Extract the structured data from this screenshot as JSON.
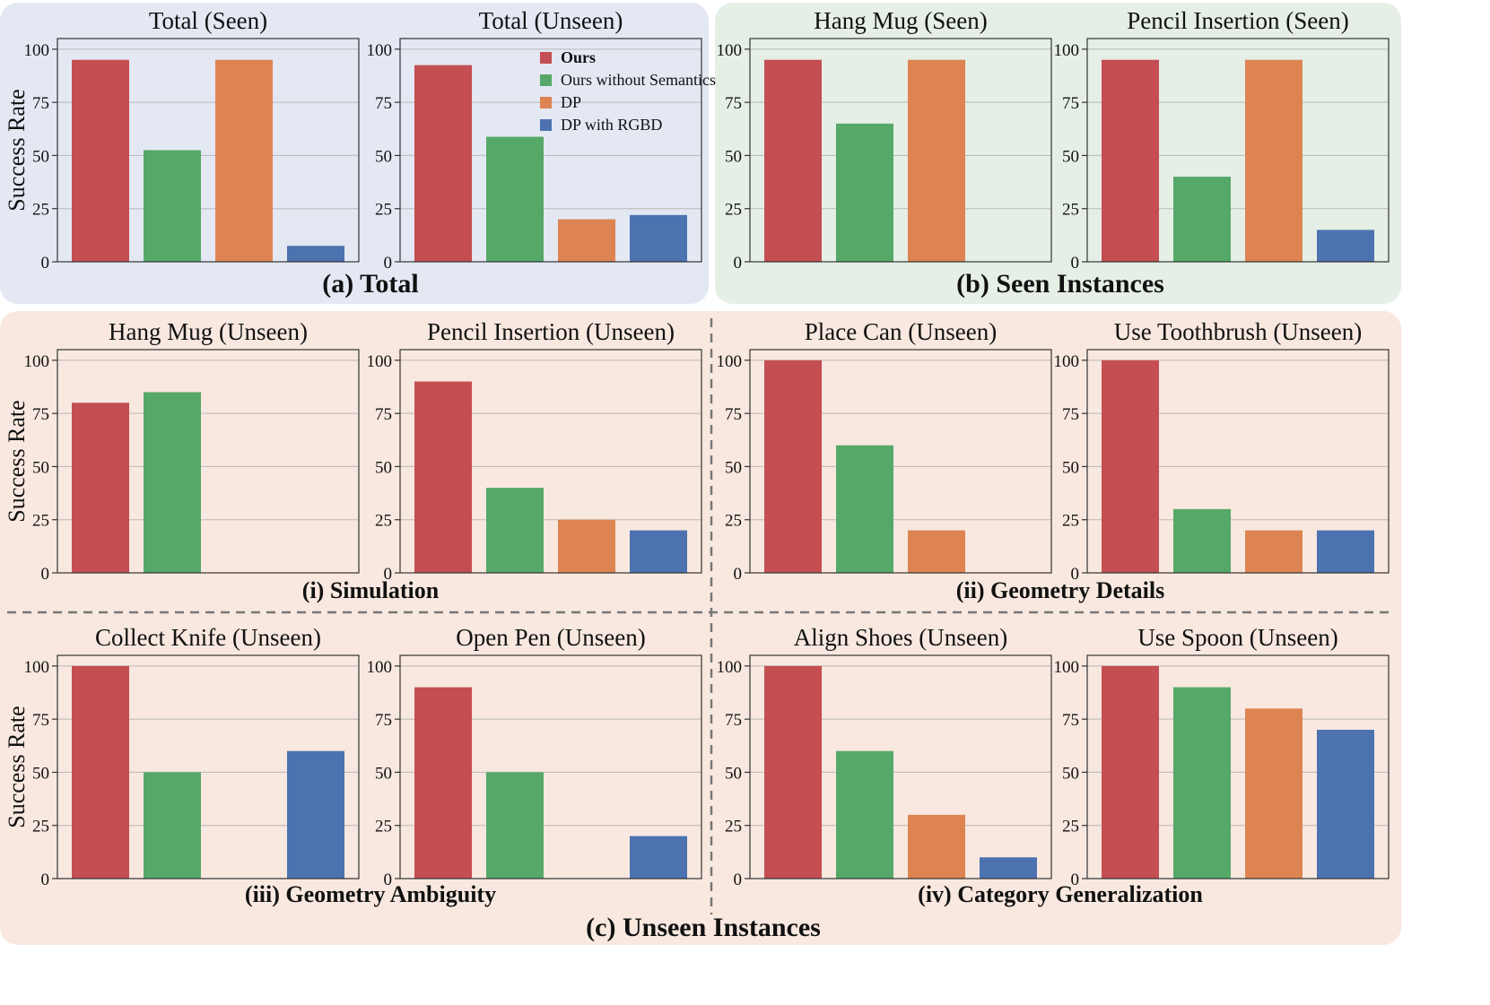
{
  "panels": [
    {
      "id": "a",
      "title": "(a) Total",
      "color": "#e3e8f3"
    },
    {
      "id": "b",
      "title": "(b) Seen Instances",
      "color": "#e5efe6"
    },
    {
      "id": "c",
      "title": "(c) Unseen Instances",
      "color": "#f8e8df"
    }
  ],
  "subsections": [
    "(i) Simulation",
    "(ii) Geometry Details",
    "(iii) Geometry Ambiguity",
    "(iv) Category Generalization"
  ],
  "legend": [
    {
      "label": "Ours",
      "color": "#c44e52"
    },
    {
      "label": "Ours without Semantics",
      "color": "#55a868"
    },
    {
      "label": "DP",
      "color": "#dd8452"
    },
    {
      "label": "DP with RGBD",
      "color": "#4c72b0"
    }
  ],
  "chart_data": [
    {
      "type": "bar",
      "title": "Total (Seen)",
      "ylabel": "Success Rate",
      "ylim": [
        0,
        105
      ],
      "yticks": [
        0,
        25,
        50,
        75,
        100
      ],
      "categories": [
        "Ours",
        "Ours without Semantics",
        "DP",
        "DP with RGBD"
      ],
      "values": [
        95,
        52.5,
        95,
        7.5
      ]
    },
    {
      "type": "bar",
      "title": "Total (Unseen)",
      "ylabel": "",
      "ylim": [
        0,
        105
      ],
      "yticks": [
        0,
        25,
        50,
        75,
        100
      ],
      "categories": [
        "Ours",
        "Ours without Semantics",
        "DP",
        "DP with RGBD"
      ],
      "values": [
        92.5,
        58.8,
        20,
        22
      ],
      "legend": "top-right"
    },
    {
      "type": "bar",
      "title": "Hang Mug (Seen)",
      "ylabel": "",
      "ylim": [
        0,
        105
      ],
      "yticks": [
        0,
        25,
        50,
        75,
        100
      ],
      "categories": [
        "Ours",
        "Ours without Semantics",
        "DP",
        "DP with RGBD"
      ],
      "values": [
        95,
        65,
        95,
        0
      ]
    },
    {
      "type": "bar",
      "title": "Pencil Insertion (Seen)",
      "ylabel": "",
      "ylim": [
        0,
        105
      ],
      "yticks": [
        0,
        25,
        50,
        75,
        100
      ],
      "categories": [
        "Ours",
        "Ours without Semantics",
        "DP",
        "DP with RGBD"
      ],
      "values": [
        95,
        40,
        95,
        15
      ]
    },
    {
      "type": "bar",
      "title": "Hang Mug (Unseen)",
      "ylabel": "Success Rate",
      "ylim": [
        0,
        105
      ],
      "yticks": [
        0,
        25,
        50,
        75,
        100
      ],
      "categories": [
        "Ours",
        "Ours without Semantics",
        "DP",
        "DP with RGBD"
      ],
      "values": [
        80,
        85,
        0,
        0
      ]
    },
    {
      "type": "bar",
      "title": "Pencil Insertion (Unseen)",
      "ylabel": "",
      "ylim": [
        0,
        105
      ],
      "yticks": [
        0,
        25,
        50,
        75,
        100
      ],
      "categories": [
        "Ours",
        "Ours without Semantics",
        "DP",
        "DP with RGBD"
      ],
      "values": [
        90,
        40,
        25,
        20
      ]
    },
    {
      "type": "bar",
      "title": "Place Can (Unseen)",
      "ylabel": "",
      "ylim": [
        0,
        105
      ],
      "yticks": [
        0,
        25,
        50,
        75,
        100
      ],
      "categories": [
        "Ours",
        "Ours without Semantics",
        "DP",
        "DP with RGBD"
      ],
      "values": [
        100,
        60,
        20,
        0
      ]
    },
    {
      "type": "bar",
      "title": "Use Toothbrush (Unseen)",
      "ylabel": "",
      "ylim": [
        0,
        105
      ],
      "yticks": [
        0,
        25,
        50,
        75,
        100
      ],
      "categories": [
        "Ours",
        "Ours without Semantics",
        "DP",
        "DP with RGBD"
      ],
      "values": [
        100,
        30,
        20,
        20
      ]
    },
    {
      "type": "bar",
      "title": "Collect Knife (Unseen)",
      "ylabel": "Success Rate",
      "ylim": [
        0,
        105
      ],
      "yticks": [
        0,
        25,
        50,
        75,
        100
      ],
      "categories": [
        "Ours",
        "Ours without Semantics",
        "DP",
        "DP with RGBD"
      ],
      "values": [
        100,
        50,
        0,
        60
      ]
    },
    {
      "type": "bar",
      "title": "Open Pen (Unseen)",
      "ylabel": "",
      "ylim": [
        0,
        105
      ],
      "yticks": [
        0,
        25,
        50,
        75,
        100
      ],
      "categories": [
        "Ours",
        "Ours without Semantics",
        "DP",
        "DP with RGBD"
      ],
      "values": [
        90,
        50,
        0,
        20
      ]
    },
    {
      "type": "bar",
      "title": "Align Shoes (Unseen)",
      "ylabel": "",
      "ylim": [
        0,
        105
      ],
      "yticks": [
        0,
        25,
        50,
        75,
        100
      ],
      "categories": [
        "Ours",
        "Ours without Semantics",
        "DP",
        "DP with RGBD"
      ],
      "values": [
        100,
        60,
        30,
        10
      ]
    },
    {
      "type": "bar",
      "title": "Use Spoon (Unseen)",
      "ylabel": "",
      "ylim": [
        0,
        105
      ],
      "yticks": [
        0,
        25,
        50,
        75,
        100
      ],
      "categories": [
        "Ours",
        "Ours without Semantics",
        "DP",
        "DP with RGBD"
      ],
      "values": [
        100,
        90,
        80,
        70
      ]
    }
  ]
}
